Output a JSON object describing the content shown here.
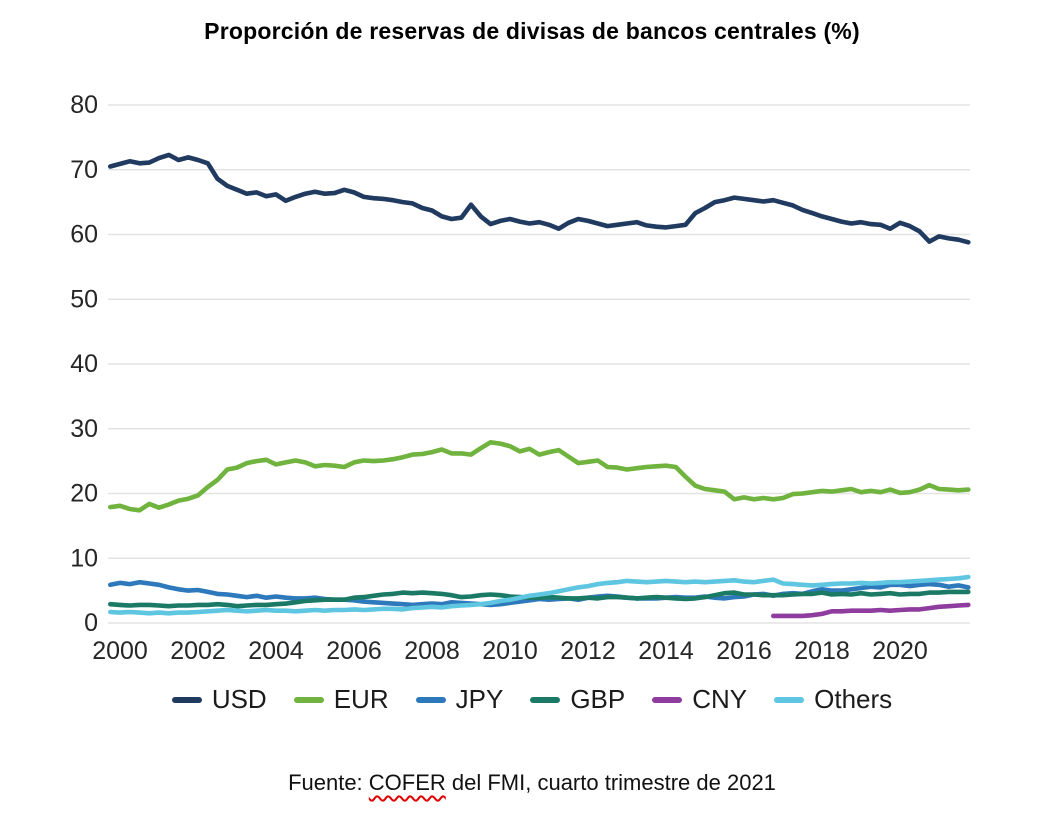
{
  "title": "Proporción de reservas de divisas de bancos centrales (%)",
  "source": {
    "prefix": "Fuente: ",
    "highlight": "COFER",
    "suffix": " del FMI, cuarto trimestre de 2021"
  },
  "legend": {
    "position": "bottom",
    "items": [
      {
        "label": "USD",
        "color": "#203a60"
      },
      {
        "label": "EUR",
        "color": "#70b33e"
      },
      {
        "label": "JPY",
        "color": "#2e79bc"
      },
      {
        "label": "GBP",
        "color": "#1b7a66"
      },
      {
        "label": "CNY",
        "color": "#8e3c9e"
      },
      {
        "label": "Others",
        "color": "#5ec6e0"
      }
    ]
  },
  "chart_data": {
    "type": "line",
    "title": "Proporción de reservas de divisas de bancos centrales (%)",
    "xlabel": "",
    "ylabel": "",
    "grid": "horizontal",
    "legend_position": "bottom",
    "ylim": [
      0,
      80
    ],
    "xlim": [
      1999.7,
      2021.9
    ],
    "y_ticks": [
      0,
      10,
      20,
      30,
      40,
      50,
      60,
      70,
      80
    ],
    "x_ticks": [
      2000,
      2002,
      2004,
      2006,
      2008,
      2010,
      2012,
      2014,
      2016,
      2018,
      2020
    ],
    "x": [
      1999.75,
      2000.0,
      2000.25,
      2000.5,
      2000.75,
      2001.0,
      2001.25,
      2001.5,
      2001.75,
      2002.0,
      2002.25,
      2002.5,
      2002.75,
      2003.0,
      2003.25,
      2003.5,
      2003.75,
      2004.0,
      2004.25,
      2004.5,
      2004.75,
      2005.0,
      2005.25,
      2005.5,
      2005.75,
      2006.0,
      2006.25,
      2006.5,
      2006.75,
      2007.0,
      2007.25,
      2007.5,
      2007.75,
      2008.0,
      2008.25,
      2008.5,
      2008.75,
      2009.0,
      2009.25,
      2009.5,
      2009.75,
      2010.0,
      2010.25,
      2010.5,
      2010.75,
      2011.0,
      2011.25,
      2011.5,
      2011.75,
      2012.0,
      2012.25,
      2012.5,
      2012.75,
      2013.0,
      2013.25,
      2013.5,
      2013.75,
      2014.0,
      2014.25,
      2014.5,
      2014.75,
      2015.0,
      2015.25,
      2015.5,
      2015.75,
      2016.0,
      2016.25,
      2016.5,
      2016.75,
      2017.0,
      2017.25,
      2017.5,
      2017.75,
      2018.0,
      2018.25,
      2018.5,
      2018.75,
      2019.0,
      2019.25,
      2019.5,
      2019.75,
      2020.0,
      2020.25,
      2020.5,
      2020.75,
      2021.0,
      2021.25,
      2021.5,
      2021.75
    ],
    "series": [
      {
        "name": "USD",
        "color": "#203a60",
        "values": [
          70.5,
          70.9,
          71.3,
          71.0,
          71.1,
          71.8,
          72.3,
          71.5,
          71.9,
          71.5,
          71.0,
          68.6,
          67.5,
          66.9,
          66.3,
          66.5,
          65.9,
          66.2,
          65.2,
          65.8,
          66.3,
          66.6,
          66.3,
          66.4,
          66.9,
          66.5,
          65.8,
          65.6,
          65.5,
          65.3,
          65.0,
          64.8,
          64.1,
          63.7,
          62.8,
          62.4,
          62.6,
          64.6,
          62.8,
          61.6,
          62.1,
          62.4,
          62.0,
          61.7,
          61.9,
          61.5,
          60.9,
          61.8,
          62.4,
          62.1,
          61.7,
          61.3,
          61.5,
          61.7,
          61.9,
          61.4,
          61.2,
          61.1,
          61.3,
          61.5,
          63.3,
          64.1,
          65.0,
          65.3,
          65.7,
          65.5,
          65.3,
          65.1,
          65.3,
          64.9,
          64.5,
          63.8,
          63.3,
          62.8,
          62.4,
          62.0,
          61.7,
          61.9,
          61.6,
          61.5,
          60.9,
          61.8,
          61.3,
          60.5,
          58.9,
          59.7,
          59.4,
          59.2,
          58.8
        ]
      },
      {
        "name": "EUR",
        "color": "#70b33e",
        "values": [
          17.9,
          18.1,
          17.6,
          17.4,
          18.4,
          17.8,
          18.3,
          18.9,
          19.2,
          19.7,
          21.0,
          22.1,
          23.7,
          24.0,
          24.7,
          25.0,
          25.2,
          24.5,
          24.8,
          25.1,
          24.8,
          24.2,
          24.4,
          24.3,
          24.1,
          24.8,
          25.1,
          25.0,
          25.1,
          25.3,
          25.6,
          26.0,
          26.1,
          26.4,
          26.8,
          26.2,
          26.2,
          26.0,
          27.0,
          27.9,
          27.7,
          27.3,
          26.5,
          26.9,
          26.0,
          26.4,
          26.7,
          25.7,
          24.7,
          24.9,
          25.1,
          24.1,
          24.0,
          23.7,
          23.9,
          24.1,
          24.2,
          24.3,
          24.1,
          22.6,
          21.2,
          20.7,
          20.5,
          20.3,
          19.1,
          19.4,
          19.1,
          19.3,
          19.1,
          19.3,
          19.9,
          20.0,
          20.2,
          20.4,
          20.3,
          20.5,
          20.7,
          20.2,
          20.4,
          20.2,
          20.6,
          20.1,
          20.2,
          20.6,
          21.3,
          20.7,
          20.6,
          20.5,
          20.6
        ]
      },
      {
        "name": "JPY",
        "color": "#2e79bc",
        "values": [
          5.9,
          6.2,
          6.0,
          6.3,
          6.1,
          5.9,
          5.5,
          5.2,
          5.0,
          5.1,
          4.8,
          4.5,
          4.4,
          4.2,
          4.0,
          4.2,
          3.9,
          4.1,
          3.9,
          3.8,
          3.8,
          3.9,
          3.7,
          3.6,
          3.6,
          3.5,
          3.3,
          3.2,
          3.1,
          3.0,
          2.9,
          2.8,
          2.9,
          3.0,
          2.9,
          3.2,
          3.1,
          3.0,
          2.9,
          2.8,
          2.9,
          3.1,
          3.3,
          3.5,
          3.7,
          3.6,
          3.7,
          3.8,
          3.6,
          3.9,
          4.1,
          4.2,
          4.1,
          3.9,
          3.8,
          3.8,
          3.8,
          3.9,
          4.0,
          3.9,
          3.9,
          4.1,
          3.9,
          3.8,
          4.0,
          4.1,
          4.4,
          4.5,
          4.2,
          4.5,
          4.6,
          4.5,
          4.9,
          5.2,
          5.0,
          5.0,
          5.2,
          5.4,
          5.6,
          5.5,
          5.9,
          5.9,
          5.7,
          5.9,
          6.0,
          5.9,
          5.6,
          5.8,
          5.5
        ]
      },
      {
        "name": "GBP",
        "color": "#1b7a66",
        "values": [
          2.9,
          2.8,
          2.7,
          2.8,
          2.8,
          2.7,
          2.6,
          2.7,
          2.7,
          2.8,
          2.8,
          2.9,
          2.8,
          2.6,
          2.7,
          2.8,
          2.8,
          2.9,
          3.0,
          3.2,
          3.4,
          3.5,
          3.6,
          3.6,
          3.6,
          3.9,
          4.0,
          4.2,
          4.4,
          4.5,
          4.7,
          4.6,
          4.7,
          4.6,
          4.5,
          4.3,
          4.0,
          4.1,
          4.3,
          4.4,
          4.3,
          4.1,
          4.0,
          3.9,
          3.9,
          4.0,
          3.9,
          3.8,
          3.8,
          3.9,
          3.8,
          4.0,
          4.0,
          3.9,
          3.8,
          3.9,
          4.0,
          3.9,
          3.8,
          3.7,
          3.8,
          4.0,
          4.3,
          4.6,
          4.7,
          4.4,
          4.4,
          4.3,
          4.3,
          4.3,
          4.4,
          4.5,
          4.5,
          4.7,
          4.4,
          4.5,
          4.4,
          4.6,
          4.4,
          4.5,
          4.6,
          4.4,
          4.5,
          4.5,
          4.7,
          4.7,
          4.8,
          4.8,
          4.8
        ]
      },
      {
        "name": "CNY",
        "color": "#8e3c9e",
        "values": [
          null,
          null,
          null,
          null,
          null,
          null,
          null,
          null,
          null,
          null,
          null,
          null,
          null,
          null,
          null,
          null,
          null,
          null,
          null,
          null,
          null,
          null,
          null,
          null,
          null,
          null,
          null,
          null,
          null,
          null,
          null,
          null,
          null,
          null,
          null,
          null,
          null,
          null,
          null,
          null,
          null,
          null,
          null,
          null,
          null,
          null,
          null,
          null,
          null,
          null,
          null,
          null,
          null,
          null,
          null,
          null,
          null,
          null,
          null,
          null,
          null,
          null,
          null,
          null,
          null,
          null,
          null,
          null,
          1.1,
          1.1,
          1.1,
          1.1,
          1.2,
          1.4,
          1.8,
          1.8,
          1.9,
          1.9,
          1.9,
          2.0,
          1.9,
          2.0,
          2.1,
          2.1,
          2.3,
          2.5,
          2.6,
          2.7,
          2.8
        ]
      },
      {
        "name": "Others",
        "color": "#5ec6e0",
        "values": [
          1.7,
          1.6,
          1.7,
          1.6,
          1.5,
          1.6,
          1.5,
          1.6,
          1.6,
          1.7,
          1.8,
          1.9,
          2.0,
          1.9,
          1.8,
          1.9,
          2.0,
          1.9,
          1.9,
          1.8,
          1.9,
          2.0,
          1.9,
          2.0,
          2.0,
          2.1,
          2.0,
          2.1,
          2.2,
          2.2,
          2.1,
          2.3,
          2.4,
          2.5,
          2.4,
          2.6,
          2.7,
          2.8,
          2.9,
          3.1,
          3.4,
          3.6,
          3.9,
          4.2,
          4.4,
          4.6,
          4.9,
          5.2,
          5.5,
          5.7,
          6.0,
          6.2,
          6.3,
          6.5,
          6.4,
          6.3,
          6.4,
          6.5,
          6.4,
          6.3,
          6.4,
          6.3,
          6.4,
          6.5,
          6.6,
          6.4,
          6.3,
          6.5,
          6.7,
          6.1,
          6.0,
          5.9,
          5.8,
          5.9,
          6.0,
          6.1,
          6.1,
          6.2,
          6.1,
          6.2,
          6.3,
          6.3,
          6.4,
          6.5,
          6.6,
          6.7,
          6.8,
          6.9,
          7.1
        ]
      }
    ]
  }
}
